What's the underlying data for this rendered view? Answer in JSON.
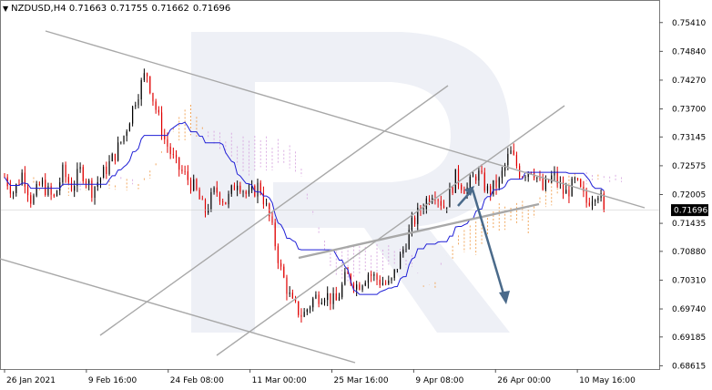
{
  "header": {
    "symbol": "NZDUSD,H4",
    "open": "0.71663",
    "high": "0.71755",
    "low": "0.71662",
    "close": "0.71696"
  },
  "colors": {
    "bull_candle": "#000000",
    "bear_candle": "#e00000",
    "kijun": "#1f1fd6",
    "cloud_a": "#f0a050",
    "cloud_b": "#d8a8e0",
    "trend_lines": "#a0a0a0",
    "forecast_arrow": "#4a6a8a",
    "price_tag": "#000000"
  },
  "chart_data": {
    "type": "candlestick",
    "y_ticks": [
      "0.75410",
      "0.74840",
      "0.74270",
      "0.73700",
      "0.73145",
      "0.72575",
      "0.72005",
      "0.71435",
      "0.70880",
      "0.70310",
      "0.69740",
      "0.69185",
      "0.68615"
    ],
    "x_ticks": [
      "26 Jan 2021",
      "9 Feb 16:00",
      "24 Feb 08:00",
      "11 Mar 00:00",
      "25 Mar 16:00",
      "9 Apr 08:00",
      "26 Apr 00:00",
      "10 May 16:00"
    ],
    "ylim": [
      0.6855,
      0.7555
    ],
    "current_price": "0.71696",
    "close_path": [
      [
        0,
        0.7235
      ],
      [
        0.5,
        0.7205
      ],
      [
        1,
        0.7245
      ],
      [
        1.5,
        0.7185
      ],
      [
        2,
        0.7225
      ],
      [
        2.7,
        0.719
      ],
      [
        3.2,
        0.7245
      ],
      [
        3.7,
        0.7215
      ],
      [
        4.2,
        0.725
      ],
      [
        4.8,
        0.721
      ],
      [
        5.3,
        0.7235
      ],
      [
        6.0,
        0.7275
      ],
      [
        6.6,
        0.732
      ],
      [
        7.2,
        0.739
      ],
      [
        7.8,
        0.7445
      ],
      [
        8.2,
        0.7385
      ],
      [
        8.8,
        0.731
      ],
      [
        9.4,
        0.726
      ],
      [
        10.0,
        0.7235
      ],
      [
        10.5,
        0.721
      ],
      [
        11.0,
        0.7165
      ],
      [
        11.6,
        0.721
      ],
      [
        12.2,
        0.7185
      ],
      [
        12.8,
        0.723
      ],
      [
        13.4,
        0.7195
      ],
      [
        14.0,
        0.722
      ],
      [
        14.6,
        0.715
      ],
      [
        15.2,
        0.705
      ],
      [
        15.8,
        0.6985
      ],
      [
        16.4,
        0.696
      ],
      [
        17.0,
        0.6995
      ],
      [
        17.6,
        0.7005
      ],
      [
        18.2,
        0.6985
      ],
      [
        18.8,
        0.704
      ],
      [
        19.4,
        0.702
      ],
      [
        20.0,
        0.7045
      ],
      [
        20.6,
        0.703
      ],
      [
        21.2,
        0.702
      ],
      [
        21.8,
        0.708
      ],
      [
        22.4,
        0.714
      ],
      [
        23.0,
        0.718
      ],
      [
        23.6,
        0.721
      ],
      [
        24.2,
        0.7175
      ],
      [
        24.8,
        0.7235
      ],
      [
        25.4,
        0.721
      ],
      [
        26.0,
        0.7245
      ],
      [
        26.6,
        0.7205
      ],
      [
        27.2,
        0.7225
      ],
      [
        27.8,
        0.7285
      ],
      [
        28.4,
        0.724
      ],
      [
        29.0,
        0.7255
      ],
      [
        29.6,
        0.721
      ],
      [
        30.2,
        0.724
      ],
      [
        30.8,
        0.72
      ],
      [
        31.4,
        0.7225
      ],
      [
        32.0,
        0.7185
      ],
      [
        32.6,
        0.721
      ],
      [
        33.0,
        0.71696
      ]
    ],
    "x_tick_positions": [
      0,
      4.5,
      9.0,
      13.5,
      18.0,
      22.5,
      27.0,
      31.5
    ],
    "xlim": [
      0,
      36
    ],
    "title": "",
    "xlabel": "",
    "ylabel": ""
  }
}
